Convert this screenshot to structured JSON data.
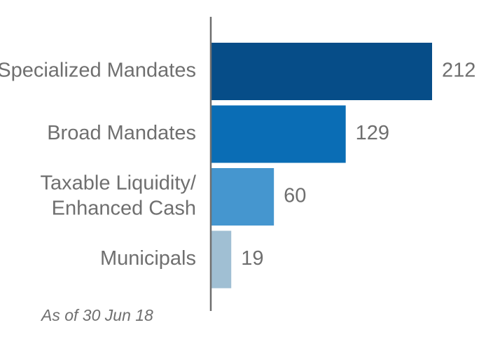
{
  "chart_data": {
    "type": "bar",
    "orientation": "horizontal",
    "categories": [
      [
        "Specialized Mandates"
      ],
      [
        "Broad Mandates"
      ],
      [
        "Taxable Liquidity/",
        "Enhanced Cash"
      ],
      [
        "Municipals"
      ]
    ],
    "values": [
      212,
      129,
      60,
      19
    ],
    "colors": [
      "#064d88",
      "#0a6db5",
      "#4596cf",
      "#a0bfd3"
    ],
    "axis_color": "#6f6f6f",
    "text_color": "#6f6f6f",
    "title": "",
    "xlabel": "",
    "ylabel": "",
    "xlim": [
      0,
      212
    ],
    "grid": false,
    "legend": "none",
    "data_labels": true
  },
  "footnote": "As of 30 Jun 18"
}
